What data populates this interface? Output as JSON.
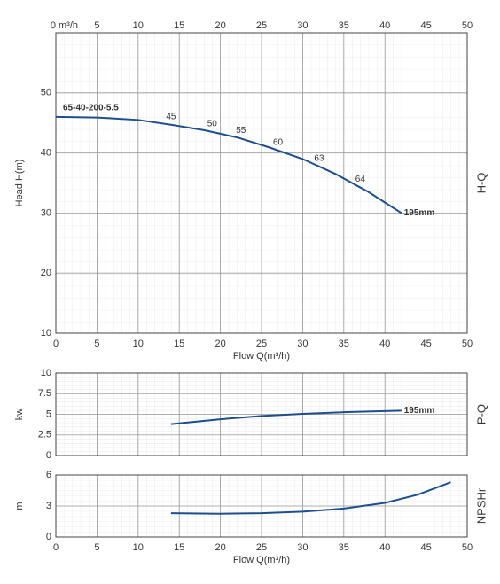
{
  "chart_data": [
    {
      "type": "line",
      "ylabel": "Head H(m)",
      "xlabel": "Flow Q(m³/h)",
      "side_label": "H-Q",
      "model": "65-40-200-5.5",
      "x2_unit": "m³/h",
      "xlim": [
        0,
        50
      ],
      "xticks": [
        0,
        5,
        10,
        15,
        20,
        25,
        30,
        35,
        40,
        45,
        50
      ],
      "ylim": [
        10,
        60
      ],
      "yticks": [
        10,
        20,
        30,
        40,
        50
      ],
      "top_axis": true,
      "xtick_labels": true,
      "grid": true,
      "series": [
        {
          "name": "195mm",
          "color": "#1f4e8c",
          "x": [
            0,
            5,
            10,
            14,
            18,
            22,
            26,
            30,
            34,
            38,
            42
          ],
          "values": [
            46,
            45.9,
            45.5,
            44.7,
            43.8,
            42.6,
            40.9,
            39,
            36.5,
            33.5,
            30
          ]
        }
      ],
      "efficiency": {
        "x": [
          14,
          19,
          22.5,
          27,
          32,
          37
        ],
        "values": [
          45,
          50,
          55,
          60,
          63,
          64
        ]
      }
    },
    {
      "type": "line",
      "ylabel": "kw",
      "side_label": "P-Q",
      "xlim": [
        0,
        50
      ],
      "xticks": [
        0,
        5,
        10,
        15,
        20,
        25,
        30,
        35,
        40,
        45,
        50
      ],
      "ylim": [
        0,
        10
      ],
      "yticks": [
        0,
        2.5,
        5,
        7.5,
        10
      ],
      "top_axis": false,
      "xtick_labels": false,
      "grid": true,
      "series": [
        {
          "name": "195mm",
          "color": "#1f4e8c",
          "x": [
            14,
            20,
            25,
            30,
            35,
            42
          ],
          "values": [
            3.8,
            4.4,
            4.8,
            5.05,
            5.25,
            5.45
          ]
        }
      ]
    },
    {
      "type": "line",
      "ylabel": "m",
      "xlabel": "Flow Q(m³/h)",
      "side_label": "NPSHr",
      "xlim": [
        0,
        50
      ],
      "xticks": [
        0,
        5,
        10,
        15,
        20,
        25,
        30,
        35,
        40,
        45,
        50
      ],
      "ylim": [
        0,
        6
      ],
      "yticks": [
        0,
        3,
        6
      ],
      "top_axis": false,
      "xtick_labels": true,
      "grid": true,
      "series": [
        {
          "color": "#1f4e8c",
          "x": [
            14,
            20,
            25,
            30,
            35,
            40,
            44,
            48
          ],
          "values": [
            2.3,
            2.25,
            2.3,
            2.45,
            2.75,
            3.3,
            4.1,
            5.3
          ]
        }
      ]
    }
  ]
}
